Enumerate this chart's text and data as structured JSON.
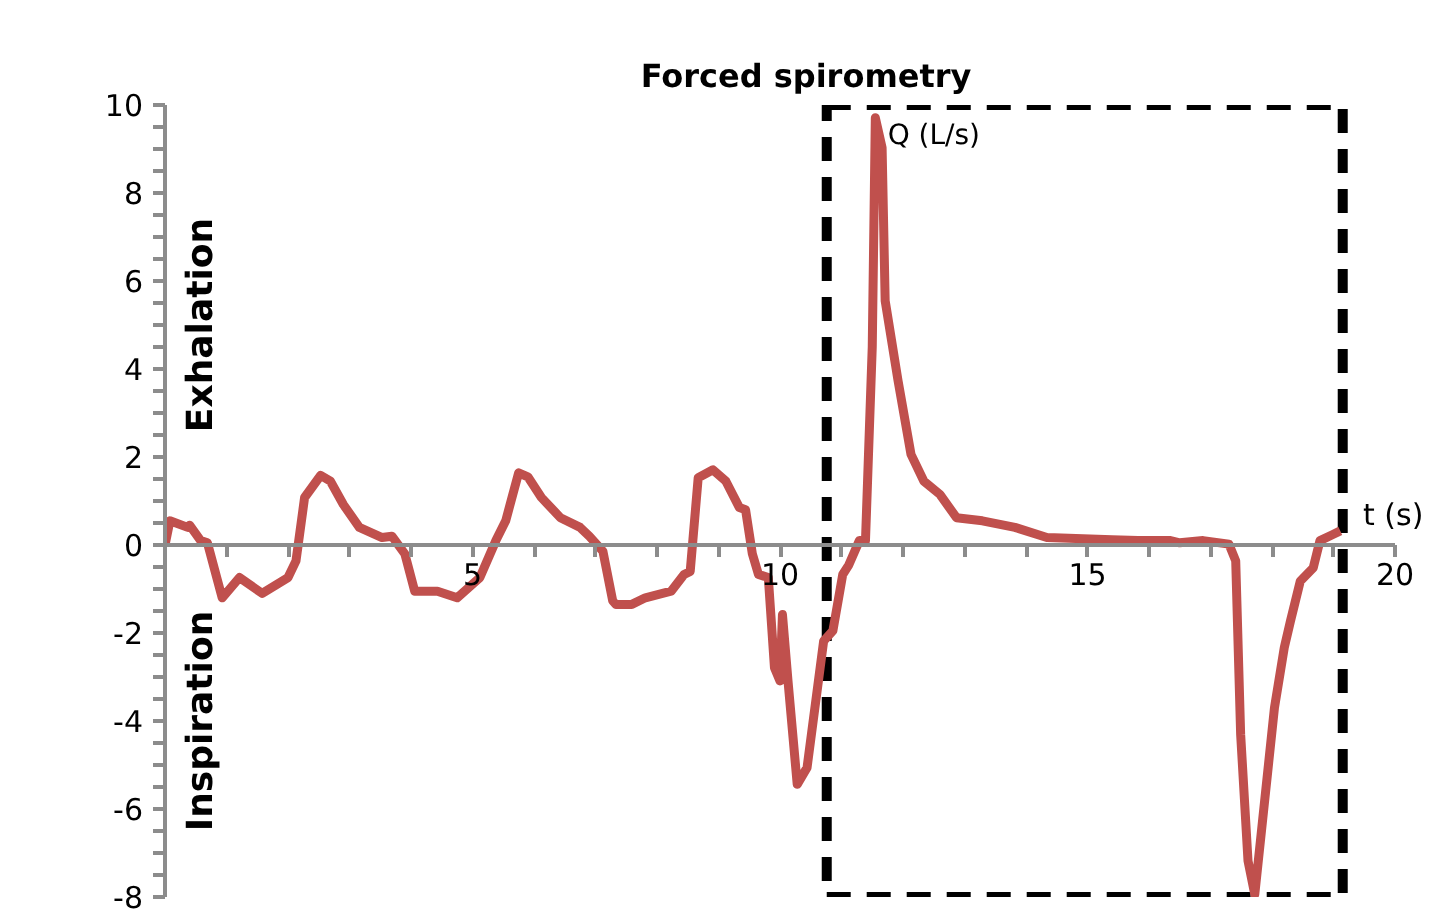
{
  "chart_data": {
    "type": "line",
    "xlabel": "t (s)",
    "ylabel": "Exhalation",
    "annotations": [
      "Inspiration",
      {
        "text": "Q (L/s)",
        "x": 11.75,
        "y": 9.3
      }
    ],
    "xlim": [
      0,
      20
    ],
    "ylim": [
      -8,
      10
    ],
    "xticks": [
      {
        "value": 0,
        "label": null
      },
      {
        "value": 1,
        "label": null
      },
      {
        "value": 2,
        "label": null
      },
      {
        "value": 3,
        "label": null
      },
      {
        "value": 4,
        "label": null
      },
      5,
      {
        "value": 6,
        "label": null
      },
      {
        "value": 7,
        "label": null
      },
      {
        "value": 8,
        "label": null
      },
      {
        "value": 9,
        "label": null
      },
      10,
      {
        "value": 11,
        "label": null
      },
      {
        "value": 12,
        "label": null
      },
      {
        "value": 13,
        "label": null
      },
      {
        "value": 14,
        "label": null
      },
      15,
      {
        "value": 16,
        "label": null
      },
      {
        "value": 17,
        "label": null
      },
      {
        "value": 18,
        "label": null
      },
      {
        "value": 19,
        "label": null
      },
      20
    ],
    "yticks": [
      -8,
      {
        "value": -7.5,
        "label": null
      },
      {
        "value": -7,
        "label": null
      },
      {
        "value": -6.5,
        "label": null
      },
      -6,
      {
        "value": -5.5,
        "label": null
      },
      {
        "value": -5,
        "label": null
      },
      {
        "value": -4.5,
        "label": null
      },
      -4,
      {
        "value": -3.5,
        "label": null
      },
      {
        "value": -3,
        "label": null
      },
      {
        "value": -2.5,
        "label": null
      },
      -2,
      {
        "value": -1.5,
        "label": null
      },
      {
        "value": -1,
        "label": null
      },
      {
        "value": -0.5,
        "label": null
      },
      0,
      {
        "value": 0.5,
        "label": null
      },
      {
        "value": 1,
        "label": null
      },
      {
        "value": 1.5,
        "label": null
      },
      2,
      {
        "value": 2.5,
        "label": null
      },
      {
        "value": 3,
        "label": null
      },
      {
        "value": 3.5,
        "label": null
      },
      4,
      {
        "value": 4.5,
        "label": null
      },
      {
        "value": 5,
        "label": null
      },
      {
        "value": 5.5,
        "label": null
      },
      6,
      {
        "value": 6.5,
        "label": null
      },
      {
        "value": 7,
        "label": null
      },
      {
        "value": 7.5,
        "label": null
      },
      8,
      {
        "value": 8.5,
        "label": null
      },
      {
        "value": 9,
        "label": null
      },
      {
        "value": 9.5,
        "label": null
      },
      10
    ],
    "grid": false,
    "marker": "none",
    "line_style": "solid",
    "bands": [
      {
        "axis": "x",
        "from": 10.76,
        "to": 19.15,
        "label": "Forced spirometry",
        "color": "#000000"
      }
    ],
    "series": [
      {
        "color": "#c0504d",
        "x": [
          0,
          0.08,
          0.37,
          0.4,
          0.58,
          0.69,
          0.93,
          1.21,
          1.58,
          2.0,
          2.13,
          2.27,
          2.53,
          2.69,
          2.9,
          3.16,
          3.53,
          3.69,
          3.9,
          4.06,
          4.43,
          4.75,
          5.12,
          5.38,
          5.54,
          5.75,
          5.9,
          6.12,
          6.43,
          6.75,
          6.9,
          7.12,
          7.28,
          7.33,
          7.59,
          7.81,
          8.23,
          8.44,
          8.54,
          8.67,
          8.91,
          9.12,
          9.34,
          9.44,
          9.55,
          9.65,
          9.81,
          9.91,
          10.0,
          10.04,
          10.13,
          10.28,
          10.44,
          10.71,
          10.86,
          11.02,
          11.12,
          11.29,
          11.39,
          11.5,
          11.55,
          11.66,
          11.71,
          11.92,
          12.13,
          12.34,
          12.6,
          12.87,
          13.29,
          13.82,
          14.34,
          15.4,
          15.82,
          16.35,
          16.5,
          16.88,
          17.3,
          17.41,
          17.49,
          17.61,
          17.72,
          17.88,
          18.04,
          18.2,
          18.3,
          18.46,
          18.67,
          18.78,
          18.99,
          19.11
        ],
        "values": [
          0,
          0.55,
          0.4,
          0.45,
          0.1,
          0.05,
          -1.2,
          -0.74,
          -1.1,
          -0.74,
          -0.36,
          1.08,
          1.58,
          1.45,
          0.92,
          0.4,
          0.17,
          0.2,
          -0.2,
          -1.05,
          -1.05,
          -1.2,
          -0.74,
          0.1,
          0.55,
          1.64,
          1.55,
          1.08,
          0.62,
          0.4,
          0.2,
          -0.14,
          -1.27,
          -1.35,
          -1.35,
          -1.2,
          -1.05,
          -0.67,
          -0.6,
          1.53,
          1.71,
          1.45,
          0.85,
          0.8,
          -0.2,
          -0.67,
          -0.74,
          -2.79,
          -3.09,
          -1.58,
          -3.09,
          -5.44,
          -5.06,
          -2.18,
          -1.95,
          -0.67,
          -0.45,
          0.1,
          0.1,
          4.5,
          9.71,
          9.03,
          5.55,
          3.73,
          2.06,
          1.45,
          1.15,
          0.62,
          0.55,
          0.4,
          0.17,
          0.12,
          0.1,
          0.1,
          0.05,
          0.1,
          0.02,
          -0.36,
          -4.3,
          -7.18,
          -7.94,
          -5.82,
          -3.7,
          -2.33,
          -1.73,
          -0.82,
          -0.52,
          0.1,
          0.24,
          0.32
        ]
      }
    ]
  }
}
